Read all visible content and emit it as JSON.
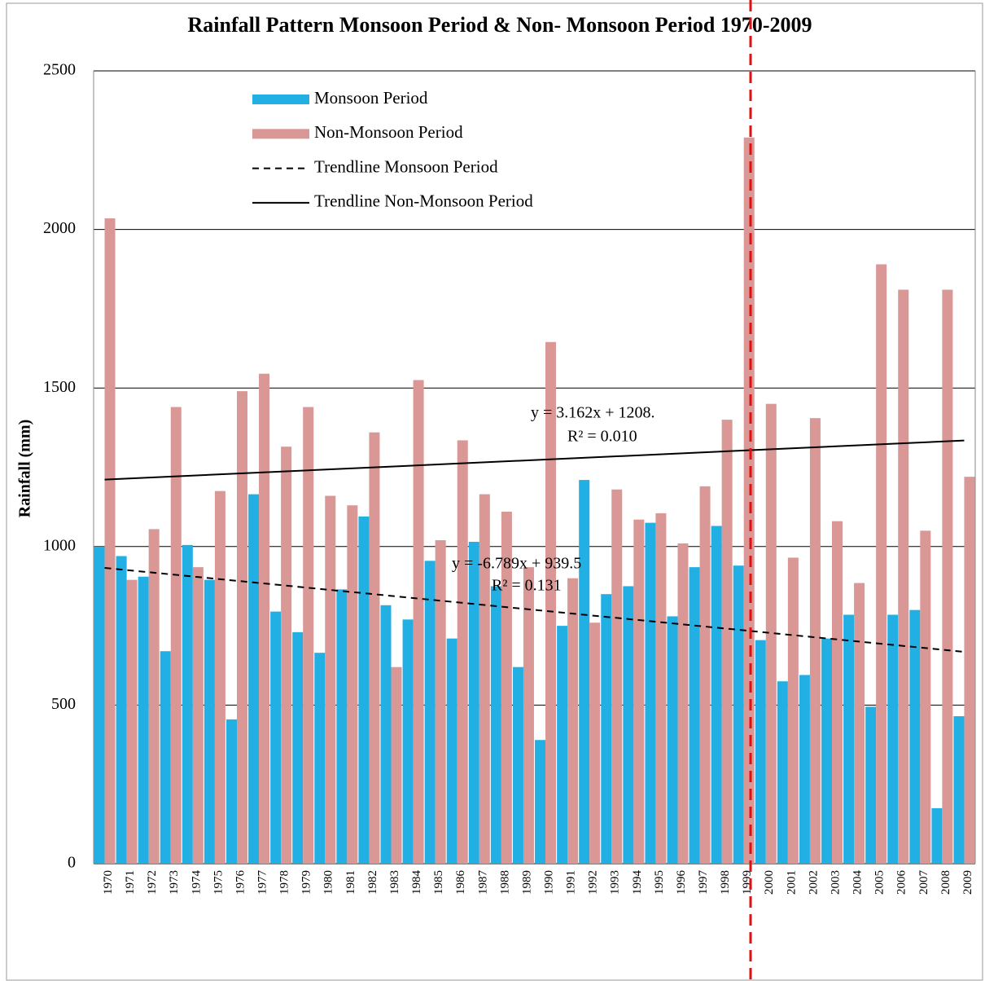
{
  "chart_data": {
    "type": "bar",
    "title": "Rainfall Pattern Monsoon Period & Non- Monsoon Period 1970-2009",
    "y_label": "Rainfall (mm)",
    "categories": [
      "1970",
      "1971",
      "1972",
      "1973",
      "1974",
      "1975",
      "1976",
      "1977",
      "1978",
      "1979",
      "1980",
      "1981",
      "1982",
      "1983",
      "1984",
      "1985",
      "1986",
      "1987",
      "1988",
      "1989",
      "1990",
      "1991",
      "1992",
      "1993",
      "1994",
      "1995",
      "1996",
      "1997",
      "1998",
      "1999",
      "2000",
      "2001",
      "2002",
      "2003",
      "2004",
      "2005",
      "2006",
      "2007",
      "2008",
      "2009"
    ],
    "series": [
      {
        "name": "Monsoon Period",
        "color": "#22b0e4",
        "values": [
          1000,
          970,
          905,
          670,
          1005,
          895,
          455,
          1165,
          795,
          730,
          665,
          865,
          1095,
          815,
          770,
          955,
          710,
          1015,
          875,
          620,
          390,
          750,
          1210,
          850,
          875,
          1075,
          780,
          935,
          1065,
          940,
          705,
          575,
          595,
          710,
          785,
          495,
          785,
          800,
          175,
          465
        ]
      },
      {
        "name": "Non-Monsoon Period",
        "color": "#d99795",
        "values": [
          2035,
          895,
          1055,
          1440,
          935,
          1175,
          1490,
          1545,
          1315,
          1440,
          1160,
          1130,
          1360,
          620,
          1525,
          1020,
          1335,
          1165,
          1110,
          935,
          1645,
          900,
          760,
          1180,
          1085,
          1105,
          1010,
          1190,
          1400,
          2290,
          1450,
          965,
          1405,
          1080,
          885,
          1890,
          1810,
          1050,
          1810,
          1220
        ]
      }
    ],
    "trendlines": [
      {
        "name": "Trendline Monsoon Period",
        "slope": -6.789,
        "intercept": 939.5,
        "dashed": true,
        "equation": "y = -6.789x + 939.5",
        "r2": "R² = 0.131"
      },
      {
        "name": "Trendline Non-Monsoon Period",
        "slope": 3.162,
        "intercept": 1208,
        "dashed": false,
        "equation": "y = 3.162x + 1208.",
        "r2": "R² = 0.010"
      }
    ],
    "ylim": [
      0,
      2500
    ],
    "yticks": [
      0,
      500,
      1000,
      1500,
      2000,
      2500
    ],
    "grid": true,
    "legend": "top-left"
  }
}
